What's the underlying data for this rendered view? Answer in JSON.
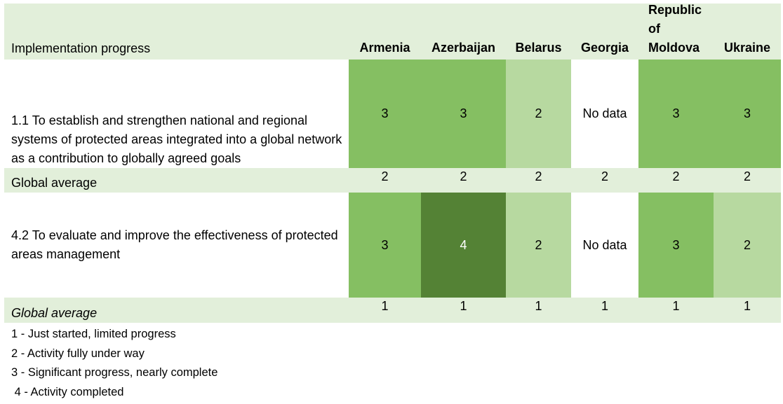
{
  "chart_data": {
    "type": "table",
    "title": "Implementation progress",
    "columns": [
      "Armenia",
      "Azerbaijan",
      "Belarus",
      "Georgia",
      "Republic of Moldova",
      "Ukraine"
    ],
    "rows": [
      {
        "label": "1.1 To establish and strengthen national and regional systems of protected areas integrated into a global network as a contribution to globally agreed goals",
        "values": [
          "3",
          "3",
          "2",
          "No data",
          "3",
          "3"
        ]
      },
      {
        "label": "Global average",
        "values": [
          "2",
          "2",
          "2",
          "2",
          "2",
          "2"
        ]
      },
      {
        "label": "4.2 To evaluate and improve the effectiveness of protected areas management",
        "values": [
          "3",
          "4",
          "2",
          "No data",
          "3",
          "2"
        ]
      },
      {
        "label": "Global average",
        "values": [
          "1",
          "1",
          "1",
          "1",
          "1",
          "1"
        ]
      }
    ],
    "legend": [
      "1 - Just started, limited progress",
      "2 - Activity fully under way",
      "3 - Significant progress, nearly complete",
      " 4 - Activity completed"
    ],
    "colors": {
      "band": "#e2efda",
      "level_2": "#b7d9a0",
      "level_3": "#85bf62",
      "level_4": "#548235",
      "no_data": "#ffffff"
    }
  }
}
